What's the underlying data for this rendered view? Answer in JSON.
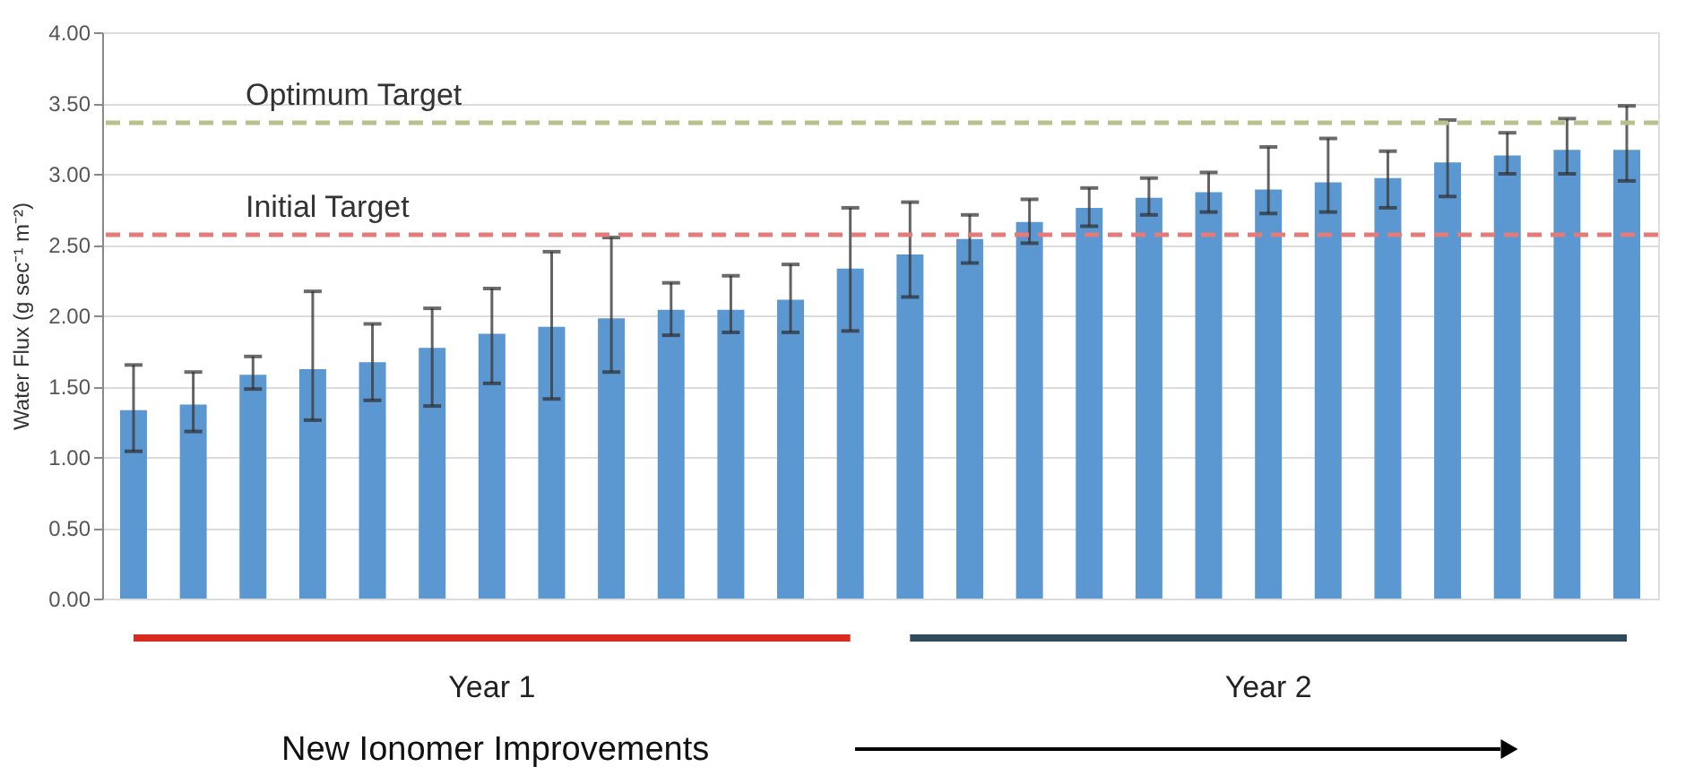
{
  "chart_data": {
    "type": "bar",
    "ylabel": "Water Flux (g sec⁻¹ m⁻²)",
    "categories": [
      null,
      null,
      null,
      null,
      null,
      null,
      null,
      null,
      null,
      null,
      null,
      null,
      null,
      null,
      null,
      null,
      null,
      null,
      null,
      null,
      null,
      null,
      null,
      null,
      null,
      null
    ],
    "values": [
      1.33,
      1.37,
      1.58,
      1.62,
      1.67,
      1.77,
      1.87,
      1.92,
      1.98,
      2.04,
      2.04,
      2.11,
      2.33,
      2.43,
      2.54,
      2.66,
      2.76,
      2.83,
      2.87,
      2.89,
      2.94,
      2.97,
      3.08,
      3.13,
      3.17,
      3.17
    ],
    "color": "#5b97d1",
    "errors": [
      [
        1.04,
        1.65
      ],
      [
        1.18,
        1.6
      ],
      [
        1.48,
        1.71
      ],
      [
        1.26,
        2.17
      ],
      [
        1.4,
        1.94
      ],
      [
        1.36,
        2.05
      ],
      [
        1.52,
        2.19
      ],
      [
        1.41,
        2.45
      ],
      [
        1.6,
        2.55
      ],
      [
        1.86,
        2.23
      ],
      [
        1.88,
        2.28
      ],
      [
        1.88,
        2.36
      ],
      [
        1.89,
        2.76
      ],
      [
        2.13,
        2.8
      ],
      [
        2.37,
        2.71
      ],
      [
        2.51,
        2.82
      ],
      [
        2.63,
        2.9
      ],
      [
        2.71,
        2.97
      ],
      [
        2.73,
        3.01
      ],
      [
        2.72,
        3.19
      ],
      [
        2.73,
        3.25
      ],
      [
        2.76,
        3.16
      ],
      [
        2.84,
        3.38
      ],
      [
        3.0,
        3.29
      ],
      [
        3.0,
        3.39
      ],
      [
        2.95,
        3.48
      ]
    ],
    "ylim": [
      0,
      4
    ],
    "yticks": [
      {
        "value": 0,
        "label": "0.00"
      },
      {
        "value": 0.5,
        "label": "0.50"
      },
      {
        "value": 1,
        "label": "1.00"
      },
      {
        "value": 1.5,
        "label": "1.50"
      },
      {
        "value": 2,
        "label": "2.00"
      },
      {
        "value": 2.5,
        "label": "2.50"
      },
      {
        "value": 3,
        "label": "3.00"
      },
      {
        "value": 3.5,
        "label": "3.50"
      },
      {
        "value": 4,
        "label": "4.00"
      }
    ],
    "grid": "y",
    "tick_labels": "y",
    "ref_lines": [
      {
        "axis": "y",
        "value": 3.36,
        "label": "Optimum Target",
        "color": "#b8c08c",
        "line_style": "dashed"
      },
      {
        "axis": "y",
        "value": 2.57,
        "label": "Initial Target",
        "color": "#e37b7b",
        "line_style": "dashed"
      }
    ],
    "annotations": [
      "Year 1",
      "Year 2",
      "New Ionomer Improvements"
    ]
  }
}
